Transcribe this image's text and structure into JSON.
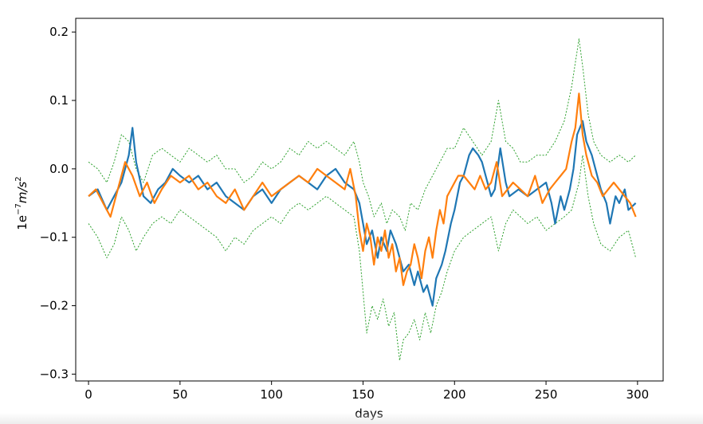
{
  "chart_data": {
    "type": "line",
    "title": "",
    "xlabel": "days",
    "ylabel_base": "1e",
    "ylabel_exp": "−7",
    "ylabel_unit": "m/s",
    "ylabel_unit_exp": "2",
    "xlim": [
      -7,
      314
    ],
    "ylim": [
      -0.31,
      0.22
    ],
    "xticks": [
      0,
      50,
      100,
      150,
      200,
      250,
      300
    ],
    "xtick_labels": [
      "0",
      "50",
      "100",
      "150",
      "200",
      "250",
      "300"
    ],
    "yticks": [
      -0.3,
      -0.2,
      -0.1,
      0.0,
      0.1,
      0.2
    ],
    "ytick_labels": [
      "−0.3",
      "−0.2",
      "−0.1",
      "0.0",
      "0.1",
      "0.2"
    ],
    "grid": false,
    "legend": "none",
    "series": [
      {
        "color": "#1f77b4",
        "style": "solid",
        "x": [
          0,
          5,
          10,
          14,
          18,
          22,
          24,
          26,
          30,
          34,
          38,
          42,
          46,
          50,
          55,
          60,
          65,
          70,
          75,
          80,
          85,
          90,
          95,
          100,
          105,
          110,
          115,
          120,
          125,
          130,
          135,
          140,
          145,
          148,
          150,
          152,
          155,
          158,
          160,
          163,
          165,
          168,
          170,
          172,
          175,
          178,
          180,
          183,
          185,
          188,
          190,
          193,
          195,
          198,
          200,
          203,
          205,
          208,
          210,
          213,
          215,
          218,
          220,
          222,
          225,
          228,
          230,
          235,
          240,
          245,
          250,
          253,
          255,
          258,
          260,
          263,
          265,
          267,
          270,
          272,
          275,
          278,
          280,
          283,
          285,
          288,
          290,
          293,
          295,
          299
        ],
        "y": [
          -0.04,
          -0.03,
          -0.06,
          -0.04,
          -0.02,
          0.02,
          0.06,
          0.01,
          -0.04,
          -0.05,
          -0.03,
          -0.02,
          0.0,
          -0.01,
          -0.02,
          -0.01,
          -0.03,
          -0.02,
          -0.04,
          -0.05,
          -0.06,
          -0.04,
          -0.03,
          -0.05,
          -0.03,
          -0.02,
          -0.01,
          -0.02,
          -0.03,
          -0.01,
          0.0,
          -0.02,
          -0.03,
          -0.05,
          -0.08,
          -0.11,
          -0.09,
          -0.13,
          -0.1,
          -0.12,
          -0.09,
          -0.11,
          -0.13,
          -0.15,
          -0.14,
          -0.17,
          -0.15,
          -0.18,
          -0.17,
          -0.2,
          -0.16,
          -0.14,
          -0.12,
          -0.08,
          -0.06,
          -0.02,
          -0.01,
          0.02,
          0.03,
          0.02,
          0.01,
          -0.02,
          -0.04,
          -0.03,
          0.03,
          -0.02,
          -0.04,
          -0.03,
          -0.04,
          -0.03,
          -0.02,
          -0.05,
          -0.08,
          -0.04,
          -0.06,
          -0.03,
          0.0,
          0.05,
          0.07,
          0.04,
          0.02,
          -0.01,
          -0.03,
          -0.05,
          -0.08,
          -0.04,
          -0.05,
          -0.03,
          -0.06,
          -0.05
        ]
      },
      {
        "color": "#ff7f0e",
        "style": "solid",
        "x": [
          0,
          4,
          8,
          12,
          16,
          20,
          24,
          28,
          32,
          36,
          40,
          45,
          50,
          55,
          60,
          65,
          70,
          75,
          80,
          85,
          90,
          95,
          100,
          105,
          110,
          115,
          120,
          125,
          130,
          135,
          140,
          143,
          146,
          148,
          150,
          152,
          154,
          156,
          158,
          160,
          162,
          164,
          166,
          168,
          170,
          172,
          174,
          176,
          178,
          180,
          182,
          184,
          186,
          188,
          190,
          192,
          194,
          196,
          198,
          200,
          202,
          205,
          208,
          211,
          214,
          217,
          220,
          223,
          226,
          229,
          232,
          236,
          240,
          244,
          248,
          252,
          255,
          258,
          261,
          264,
          266,
          268,
          270,
          272,
          275,
          278,
          281,
          284,
          287,
          290,
          293,
          296,
          299
        ],
        "y": [
          -0.04,
          -0.03,
          -0.05,
          -0.07,
          -0.03,
          0.01,
          -0.01,
          -0.04,
          -0.02,
          -0.05,
          -0.03,
          -0.01,
          -0.02,
          -0.01,
          -0.03,
          -0.02,
          -0.04,
          -0.05,
          -0.03,
          -0.06,
          -0.04,
          -0.02,
          -0.04,
          -0.03,
          -0.02,
          -0.01,
          -0.02,
          0.0,
          -0.01,
          -0.02,
          -0.03,
          0.0,
          -0.04,
          -0.09,
          -0.12,
          -0.08,
          -0.1,
          -0.14,
          -0.1,
          -0.12,
          -0.09,
          -0.13,
          -0.11,
          -0.15,
          -0.13,
          -0.17,
          -0.15,
          -0.14,
          -0.11,
          -0.13,
          -0.16,
          -0.12,
          -0.1,
          -0.13,
          -0.09,
          -0.06,
          -0.08,
          -0.04,
          -0.03,
          -0.02,
          -0.01,
          -0.01,
          -0.02,
          -0.03,
          -0.01,
          -0.03,
          -0.02,
          0.01,
          -0.04,
          -0.03,
          -0.02,
          -0.03,
          -0.04,
          -0.01,
          -0.05,
          -0.03,
          -0.02,
          -0.01,
          0.0,
          0.04,
          0.06,
          0.11,
          0.05,
          0.02,
          -0.01,
          -0.02,
          -0.04,
          -0.03,
          -0.02,
          -0.03,
          -0.04,
          -0.05,
          -0.07
        ]
      },
      {
        "color": "#2ca02c",
        "style": "dotted",
        "x": [
          0,
          5,
          10,
          14,
          18,
          22,
          26,
          30,
          35,
          40,
          45,
          50,
          55,
          60,
          65,
          70,
          75,
          80,
          85,
          90,
          95,
          100,
          105,
          110,
          115,
          120,
          125,
          130,
          135,
          140,
          145,
          148,
          150,
          153,
          156,
          160,
          163,
          166,
          170,
          173,
          176,
          180,
          184,
          188,
          192,
          196,
          200,
          205,
          210,
          215,
          220,
          224,
          228,
          232,
          236,
          240,
          245,
          250,
          255,
          260,
          264,
          268,
          270,
          273,
          276,
          280,
          285,
          290,
          295,
          299
        ],
        "y": [
          0.01,
          0.0,
          -0.02,
          0.01,
          0.05,
          0.04,
          0.0,
          -0.02,
          0.02,
          0.03,
          0.02,
          0.01,
          0.03,
          0.02,
          0.01,
          0.02,
          0.0,
          0.0,
          -0.02,
          -0.01,
          0.01,
          0.0,
          0.01,
          0.03,
          0.02,
          0.04,
          0.03,
          0.04,
          0.03,
          0.02,
          0.04,
          0.01,
          -0.02,
          -0.04,
          -0.07,
          -0.05,
          -0.08,
          -0.06,
          -0.07,
          -0.09,
          -0.05,
          -0.06,
          -0.03,
          -0.01,
          0.01,
          0.03,
          0.03,
          0.06,
          0.04,
          0.02,
          0.04,
          0.1,
          0.04,
          0.03,
          0.01,
          0.01,
          0.02,
          0.02,
          0.04,
          0.07,
          0.12,
          0.19,
          0.15,
          0.08,
          0.04,
          0.02,
          0.01,
          0.02,
          0.01,
          0.02
        ]
      },
      {
        "color": "#2ca02c",
        "style": "dotted",
        "x": [
          0,
          5,
          10,
          14,
          18,
          22,
          26,
          30,
          35,
          40,
          45,
          50,
          55,
          60,
          65,
          70,
          75,
          80,
          85,
          90,
          95,
          100,
          105,
          110,
          115,
          120,
          125,
          130,
          135,
          140,
          145,
          148,
          150,
          152,
          155,
          158,
          161,
          164,
          167,
          170,
          172,
          175,
          178,
          181,
          184,
          187,
          190,
          193,
          196,
          200,
          205,
          210,
          215,
          220,
          224,
          228,
          232,
          236,
          240,
          245,
          250,
          255,
          260,
          264,
          268,
          270,
          273,
          276,
          280,
          285,
          290,
          295,
          299
        ],
        "y": [
          -0.08,
          -0.1,
          -0.13,
          -0.11,
          -0.07,
          -0.09,
          -0.12,
          -0.1,
          -0.08,
          -0.07,
          -0.08,
          -0.06,
          -0.07,
          -0.08,
          -0.09,
          -0.1,
          -0.12,
          -0.1,
          -0.11,
          -0.09,
          -0.08,
          -0.07,
          -0.08,
          -0.06,
          -0.05,
          -0.06,
          -0.05,
          -0.04,
          -0.05,
          -0.06,
          -0.07,
          -0.12,
          -0.18,
          -0.24,
          -0.2,
          -0.22,
          -0.19,
          -0.23,
          -0.21,
          -0.28,
          -0.25,
          -0.24,
          -0.22,
          -0.25,
          -0.21,
          -0.24,
          -0.2,
          -0.18,
          -0.15,
          -0.12,
          -0.1,
          -0.09,
          -0.08,
          -0.07,
          -0.12,
          -0.08,
          -0.06,
          -0.07,
          -0.08,
          -0.07,
          -0.09,
          -0.08,
          -0.07,
          -0.06,
          -0.02,
          0.02,
          -0.04,
          -0.08,
          -0.11,
          -0.12,
          -0.1,
          -0.09,
          -0.13
        ]
      }
    ]
  }
}
